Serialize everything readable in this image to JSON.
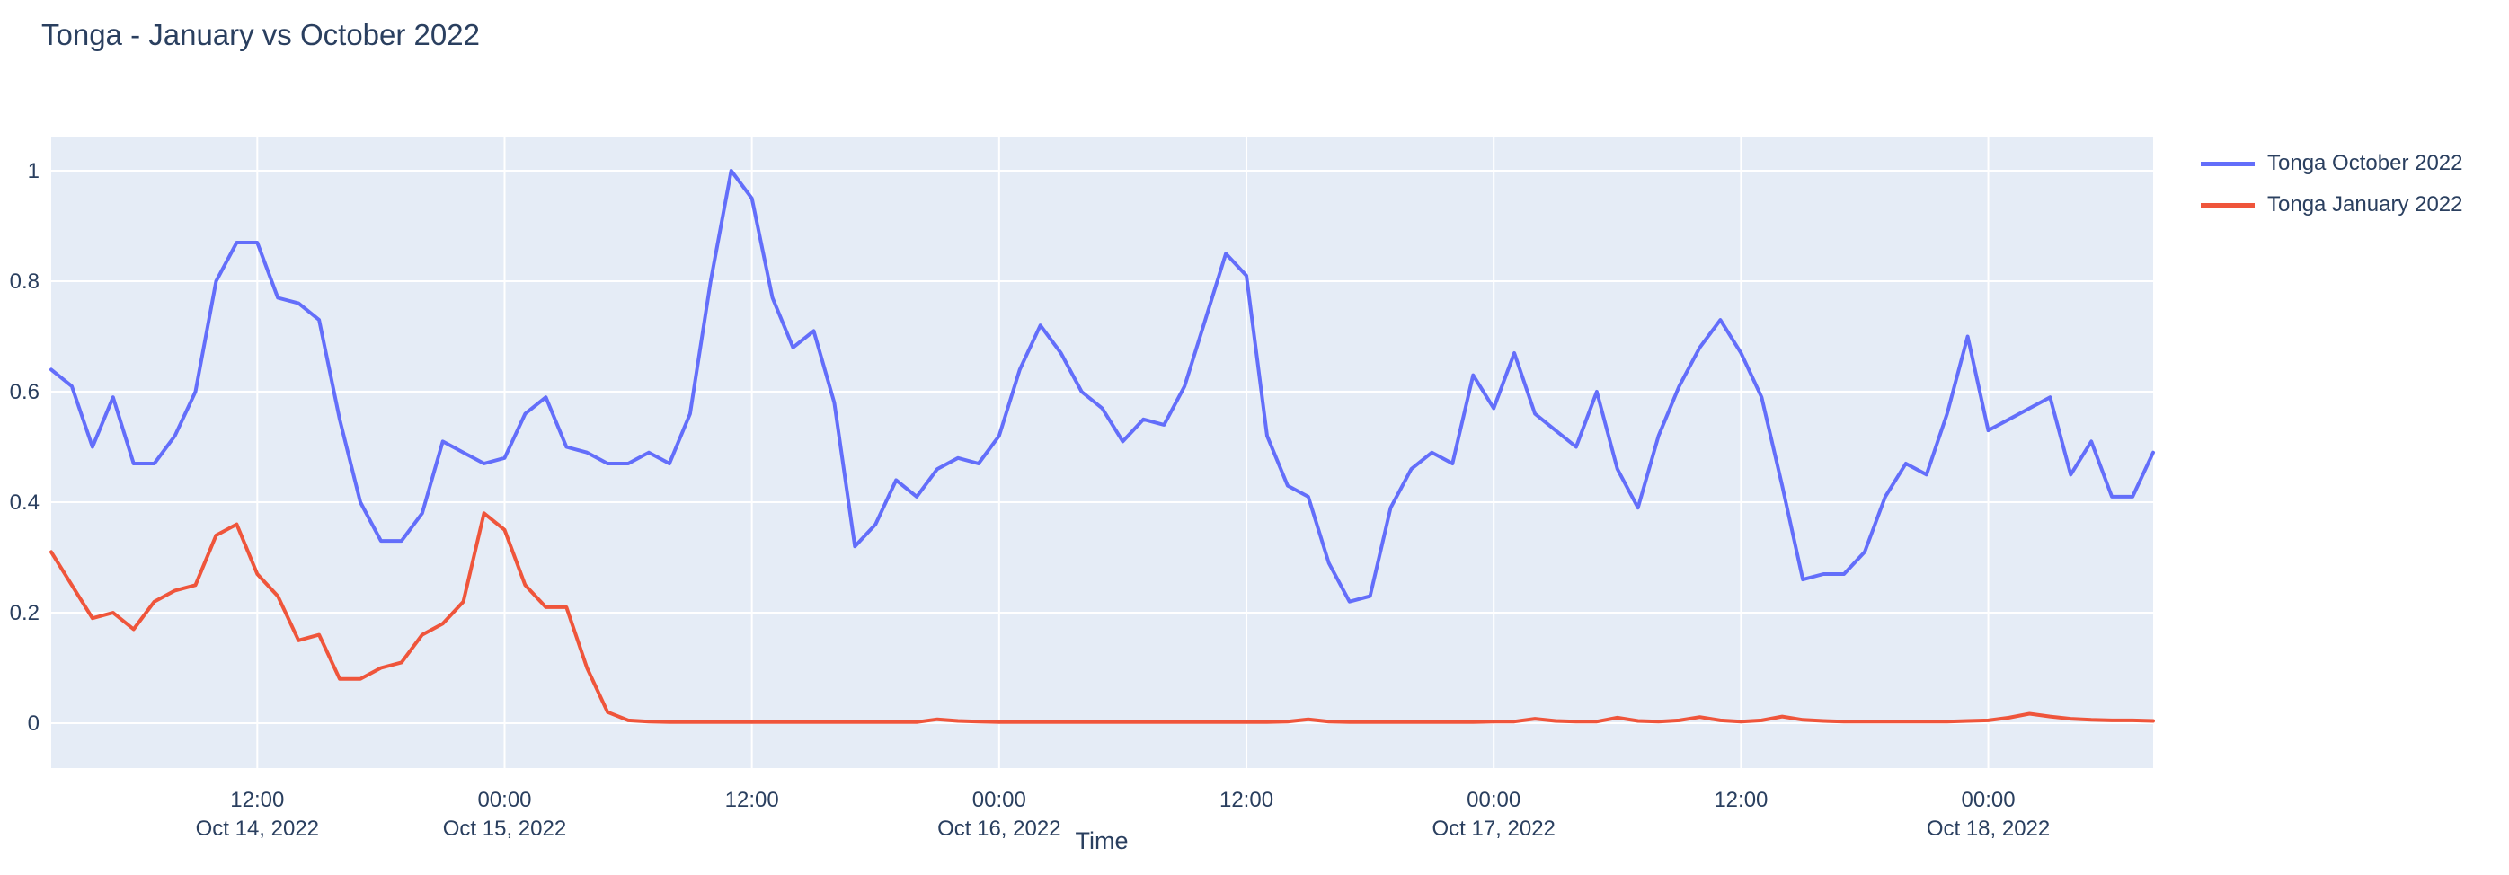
{
  "chart_data": {
    "type": "line",
    "title": "Tonga - January vs October 2022",
    "xlabel": "Time",
    "ylabel": "",
    "plot_bgcolor": "#e5ecf6",
    "paper_bgcolor": "#ffffff",
    "grid_color": "#ffffff",
    "text_color": "#2a3f5f",
    "grid": true,
    "legend_position": "outside-top-right",
    "x_start": "2022-10-14 02:00",
    "x_step_hours": 1,
    "n_points": 103,
    "x_range_hours": [
      0,
      102
    ],
    "ylim": [
      -0.0813,
      1.0618
    ],
    "yticks": [
      0,
      0.2,
      0.4,
      0.6,
      0.8,
      1
    ],
    "xticks": [
      {
        "hour": 10,
        "time": "12:00",
        "date": "Oct 14, 2022"
      },
      {
        "hour": 22,
        "time": "00:00",
        "date": "Oct 15, 2022"
      },
      {
        "hour": 34,
        "time": "12:00",
        "date": ""
      },
      {
        "hour": 46,
        "time": "00:00",
        "date": "Oct 16, 2022"
      },
      {
        "hour": 58,
        "time": "12:00",
        "date": ""
      },
      {
        "hour": 70,
        "time": "00:00",
        "date": "Oct 17, 2022"
      },
      {
        "hour": 82,
        "time": "12:00",
        "date": ""
      },
      {
        "hour": 94,
        "time": "00:00",
        "date": "Oct 18, 2022"
      }
    ],
    "series": [
      {
        "name": "Tonga October 2022",
        "color": "#636efa",
        "values": [
          0.64,
          0.61,
          0.5,
          0.59,
          0.47,
          0.47,
          0.52,
          0.6,
          0.8,
          0.87,
          0.87,
          0.77,
          0.76,
          0.73,
          0.55,
          0.4,
          0.33,
          0.33,
          0.38,
          0.51,
          0.49,
          0.47,
          0.48,
          0.56,
          0.59,
          0.5,
          0.49,
          0.47,
          0.47,
          0.49,
          0.47,
          0.56,
          0.8,
          1.0,
          0.95,
          0.77,
          0.68,
          0.71,
          0.58,
          0.32,
          0.36,
          0.44,
          0.41,
          0.46,
          0.48,
          0.47,
          0.52,
          0.64,
          0.72,
          0.67,
          0.6,
          0.57,
          0.51,
          0.55,
          0.54,
          0.61,
          0.73,
          0.85,
          0.81,
          0.52,
          0.43,
          0.41,
          0.29,
          0.22,
          0.23,
          0.39,
          0.46,
          0.49,
          0.47,
          0.63,
          0.57,
          0.67,
          0.56,
          0.53,
          0.5,
          0.6,
          0.46,
          0.39,
          0.52,
          0.61,
          0.68,
          0.73,
          0.67,
          0.59,
          0.43,
          0.26,
          0.27,
          0.27,
          0.31,
          0.41,
          0.47,
          0.45,
          0.56,
          0.7,
          0.53,
          0.55,
          0.57,
          0.59,
          0.45,
          0.51,
          0.41,
          0.41,
          0.49
        ]
      },
      {
        "name": "Tonga January 2022",
        "color": "#ef553b",
        "values": [
          0.31,
          0.25,
          0.19,
          0.2,
          0.17,
          0.22,
          0.24,
          0.25,
          0.34,
          0.36,
          0.27,
          0.23,
          0.15,
          0.16,
          0.08,
          0.08,
          0.1,
          0.11,
          0.16,
          0.18,
          0.22,
          0.38,
          0.35,
          0.25,
          0.21,
          0.21,
          0.1,
          0.02,
          0.005,
          0.003,
          0.002,
          0.002,
          0.002,
          0.002,
          0.002,
          0.002,
          0.002,
          0.002,
          0.002,
          0.002,
          0.002,
          0.002,
          0.002,
          0.007,
          0.004,
          0.003,
          0.002,
          0.002,
          0.002,
          0.002,
          0.002,
          0.002,
          0.002,
          0.002,
          0.002,
          0.002,
          0.002,
          0.002,
          0.002,
          0.002,
          0.003,
          0.007,
          0.003,
          0.002,
          0.002,
          0.002,
          0.002,
          0.002,
          0.002,
          0.002,
          0.003,
          0.003,
          0.008,
          0.004,
          0.003,
          0.003,
          0.01,
          0.004,
          0.003,
          0.005,
          0.011,
          0.005,
          0.003,
          0.005,
          0.012,
          0.006,
          0.004,
          0.003,
          0.003,
          0.003,
          0.003,
          0.003,
          0.003,
          0.004,
          0.005,
          0.01,
          0.017,
          0.012,
          0.008,
          0.006,
          0.005,
          0.005,
          0.004
        ]
      }
    ]
  }
}
